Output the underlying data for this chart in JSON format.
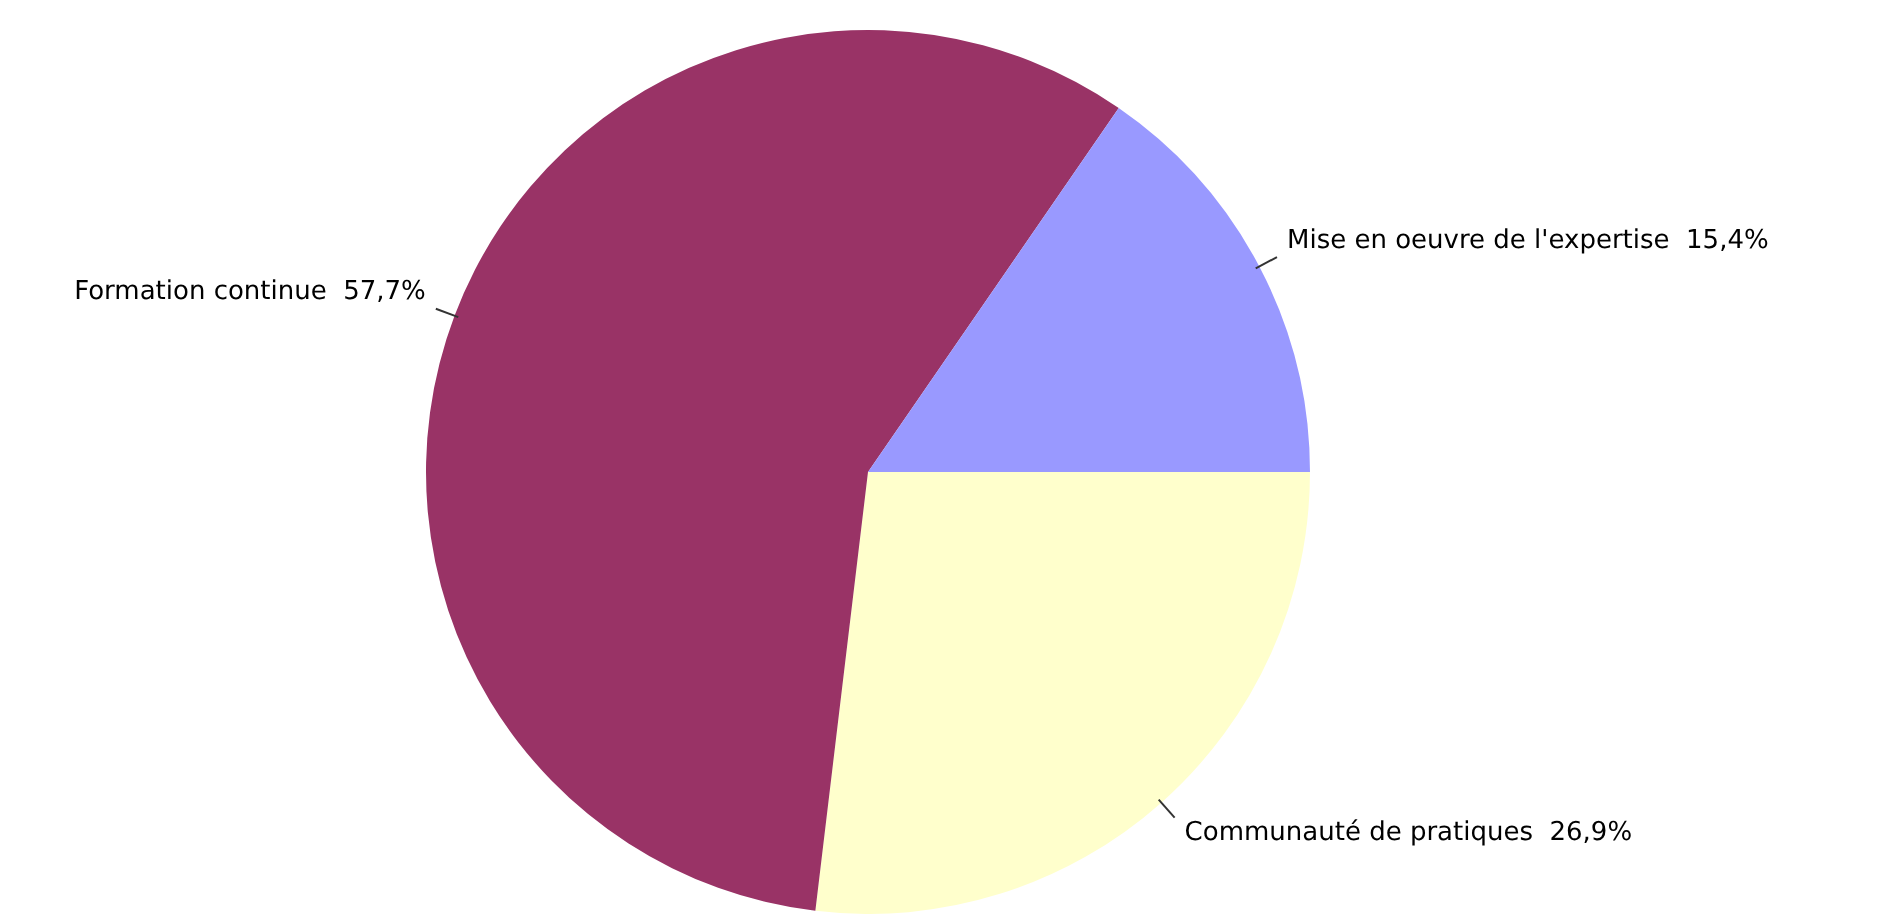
{
  "chart_data": {
    "type": "pie",
    "categories": [
      "Communauté de pratiques",
      "Formation continue",
      "Mise en oeuvre de l'expertise"
    ],
    "values": [
      26.9,
      57.7,
      15.4
    ],
    "colors": [
      "#ffffcc",
      "#993366",
      "#9999ff"
    ],
    "value_labels": [
      "26,9%",
      "57,7%",
      "15,4%"
    ],
    "legend": false
  }
}
